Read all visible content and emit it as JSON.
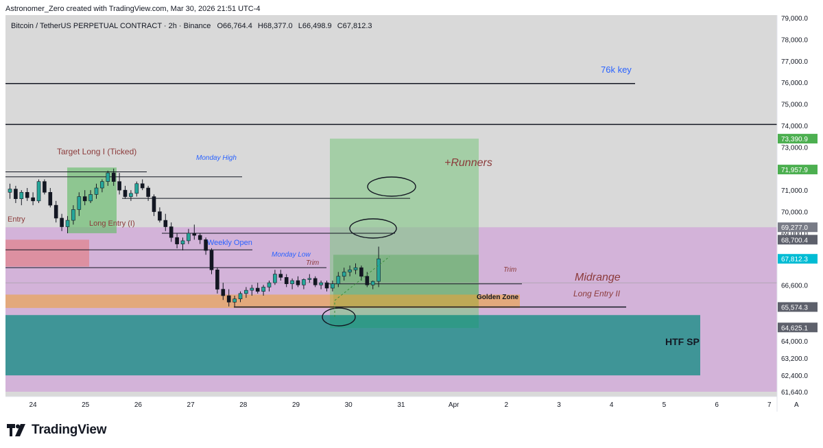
{
  "header": "Astronomer_Zero created with TradingView.com, Mar 30, 2026 21:51 UTC-4",
  "symbol_line": "Bitcoin / TetherUS PERPETUAL CONTRACT · 2h · Binance",
  "ohlc": {
    "o": "O66,764.4",
    "h": "H68,377.0",
    "l": "L66,498.9",
    "c": "C67,812.3"
  },
  "footer_brand": "TradingView",
  "price_axis": {
    "ticks": [
      "79,000.0",
      "78,000.0",
      "77,000.0",
      "76,000.0",
      "75,000.0",
      "74,000.0",
      "73,000.0",
      "72,000.0",
      "71,000.0",
      "70,000.0",
      "69,000.0",
      "66,600.0",
      "64,000.0",
      "63,200.0",
      "62,400.0",
      "61,640.0"
    ],
    "tags": [
      {
        "label": "73,390.9",
        "color": "#4caf50",
        "value": 73390.9
      },
      {
        "label": "71,957.9",
        "color": "#4caf50",
        "value": 71957.9
      },
      {
        "label": "69,277.0",
        "color": "#787b86",
        "value": 69277.0
      },
      {
        "label": "68,700.4",
        "color": "#5d606b",
        "value": 68700.4
      },
      {
        "label": "67,812.3",
        "color": "#00bcd4",
        "value": 67812.3
      },
      {
        "label": "65,574.3",
        "color": "#5d606b",
        "value": 65574.3
      },
      {
        "label": "64,625.1",
        "color": "#5d606b",
        "value": 64625.1
      }
    ]
  },
  "time_axis": [
    "24",
    "25",
    "26",
    "27",
    "28",
    "29",
    "30",
    "31",
    "Apr",
    "2",
    "3",
    "4",
    "5",
    "6",
    "7"
  ],
  "auto_scale_label": "A",
  "annotations": {
    "key76": "76k key",
    "target_long": "Target Long I (Ticked)",
    "monday_high": "Monday High",
    "entry": "Entry",
    "long_entry_1": "Long Entry (I)",
    "weekly_open": "Weekly Open",
    "monday_low": "Monday Low",
    "trim_left": "Trim",
    "trim_right": "Trim",
    "runners": "+Runners",
    "midrange": "Midrange",
    "golden_zone": "Golden Zone",
    "long_entry_2": "Long Entry II",
    "htf_sp": "HTF SP"
  },
  "colors": {
    "up": "#26a69a",
    "down": "#131722",
    "midrange_zone": "#ce93d8",
    "htf_zone": "#00897b",
    "golden_zone": "#f0a030",
    "target_green": "#4caf50",
    "annotation_red": "#8b3a3a",
    "annotation_blue": "#2962ff"
  },
  "chart_data": {
    "type": "candlestick",
    "symbol": "Bitcoin / TetherUS PERPETUAL CONTRACT",
    "interval": "2h",
    "exchange": "Binance",
    "y_range": [
      61640,
      79000
    ],
    "x_ticks": [
      "24",
      "25",
      "26",
      "27",
      "28",
      "29",
      "30",
      "31",
      "Apr",
      "2",
      "3",
      "4",
      "5",
      "6",
      "7"
    ],
    "last": {
      "open": 66764.4,
      "high": 68377.0,
      "low": 66498.9,
      "close": 67812.3
    },
    "levels": [
      {
        "label": "76k key",
        "price": 75950
      },
      {
        "label": "",
        "price": 74050
      },
      {
        "label": "Target Long I (Ticked)",
        "price": 71850
      },
      {
        "label": "Monday High",
        "price": 71620
      },
      {
        "label": "",
        "price": 70620
      },
      {
        "label": "Long Entry (I)",
        "price": 69000
      },
      {
        "label": "Weekly Open",
        "price": 68230
      },
      {
        "label": "Monday Low",
        "price": 67400
      },
      {
        "label": "Trim",
        "price": 66650
      },
      {
        "label": "Long Entry II",
        "price": 65574
      }
    ],
    "zones": [
      {
        "label": "Midrange",
        "from": 61640,
        "to": 69277
      },
      {
        "label": "HTF SP",
        "from": 62400,
        "to": 65200
      },
      {
        "label": "Golden Zone",
        "from": 65530,
        "to": 66150
      },
      {
        "label": "Entry",
        "from": 67450,
        "to": 68700
      },
      {
        "label": "+Runners",
        "from": 64600,
        "to": 73390.9
      }
    ],
    "candles": [
      [
        70900,
        71300,
        70600,
        71050
      ],
      [
        71050,
        71200,
        70400,
        70600
      ],
      [
        70600,
        71000,
        70300,
        70900
      ],
      [
        70900,
        71100,
        70500,
        70650
      ],
      [
        70650,
        70900,
        70300,
        70500
      ],
      [
        70500,
        71500,
        70400,
        71400
      ],
      [
        71400,
        71500,
        70800,
        70900
      ],
      [
        70900,
        71100,
        70200,
        70300
      ],
      [
        70300,
        70500,
        69500,
        69700
      ],
      [
        69700,
        69900,
        69100,
        69300
      ],
      [
        69300,
        69800,
        69000,
        69600
      ],
      [
        69600,
        70300,
        69400,
        70100
      ],
      [
        70100,
        70900,
        69800,
        70700
      ],
      [
        70700,
        71000,
        70300,
        70500
      ],
      [
        70500,
        71000,
        70400,
        70800
      ],
      [
        70800,
        71300,
        70600,
        71100
      ],
      [
        71100,
        71500,
        70900,
        71400
      ],
      [
        71400,
        71900,
        71200,
        71800
      ],
      [
        71800,
        72000,
        71200,
        71400
      ],
      [
        71400,
        71800,
        70800,
        71000
      ],
      [
        71000,
        71200,
        70600,
        70700
      ],
      [
        70700,
        71000,
        70500,
        70850
      ],
      [
        70850,
        71400,
        70700,
        71300
      ],
      [
        71300,
        71500,
        71000,
        71100
      ],
      [
        71100,
        71200,
        70500,
        70700
      ],
      [
        70700,
        70800,
        69800,
        70000
      ],
      [
        70000,
        70200,
        69500,
        69600
      ],
      [
        69600,
        69900,
        69100,
        69300
      ],
      [
        69300,
        69500,
        68600,
        68800
      ],
      [
        68800,
        69000,
        68300,
        68500
      ],
      [
        68500,
        68800,
        68200,
        68650
      ],
      [
        68650,
        69200,
        68500,
        69000
      ],
      [
        69000,
        69400,
        68700,
        68900
      ],
      [
        68900,
        69000,
        68500,
        68700
      ],
      [
        68700,
        68800,
        68000,
        68200
      ],
      [
        68200,
        68300,
        67100,
        67300
      ],
      [
        67300,
        67400,
        66200,
        66400
      ],
      [
        66400,
        66700,
        65900,
        66100
      ],
      [
        66100,
        66400,
        65600,
        65800
      ],
      [
        65800,
        66100,
        65600,
        65950
      ],
      [
        65950,
        66300,
        65800,
        66200
      ],
      [
        66200,
        66500,
        66000,
        66350
      ],
      [
        66350,
        66600,
        66100,
        66450
      ],
      [
        66450,
        66700,
        66200,
        66300
      ],
      [
        66300,
        66600,
        66100,
        66500
      ],
      [
        66500,
        66800,
        66300,
        66700
      ],
      [
        66700,
        67300,
        66600,
        67100
      ],
      [
        67100,
        67300,
        66800,
        66950
      ],
      [
        66950,
        67100,
        66500,
        66650
      ],
      [
        66650,
        66900,
        66400,
        66800
      ],
      [
        66800,
        67000,
        66500,
        66600
      ],
      [
        66600,
        66900,
        66400,
        66850
      ],
      [
        66850,
        67100,
        66700,
        66900
      ],
      [
        66900,
        67000,
        66500,
        66600
      ],
      [
        66600,
        66800,
        66400,
        66700
      ],
      [
        66700,
        66800,
        66300,
        66450
      ],
      [
        66450,
        66800,
        66300,
        66650
      ],
      [
        66650,
        67200,
        66500,
        67000
      ],
      [
        67000,
        67400,
        66800,
        67200
      ],
      [
        67200,
        67500,
        67000,
        67300
      ],
      [
        67300,
        67600,
        67100,
        67400
      ],
      [
        67400,
        67500,
        66800,
        67000
      ],
      [
        67000,
        67200,
        66500,
        66600
      ],
      [
        66600,
        66800,
        66400,
        66764.4
      ],
      [
        66764.4,
        68377,
        66498.9,
        67812.3
      ]
    ]
  }
}
